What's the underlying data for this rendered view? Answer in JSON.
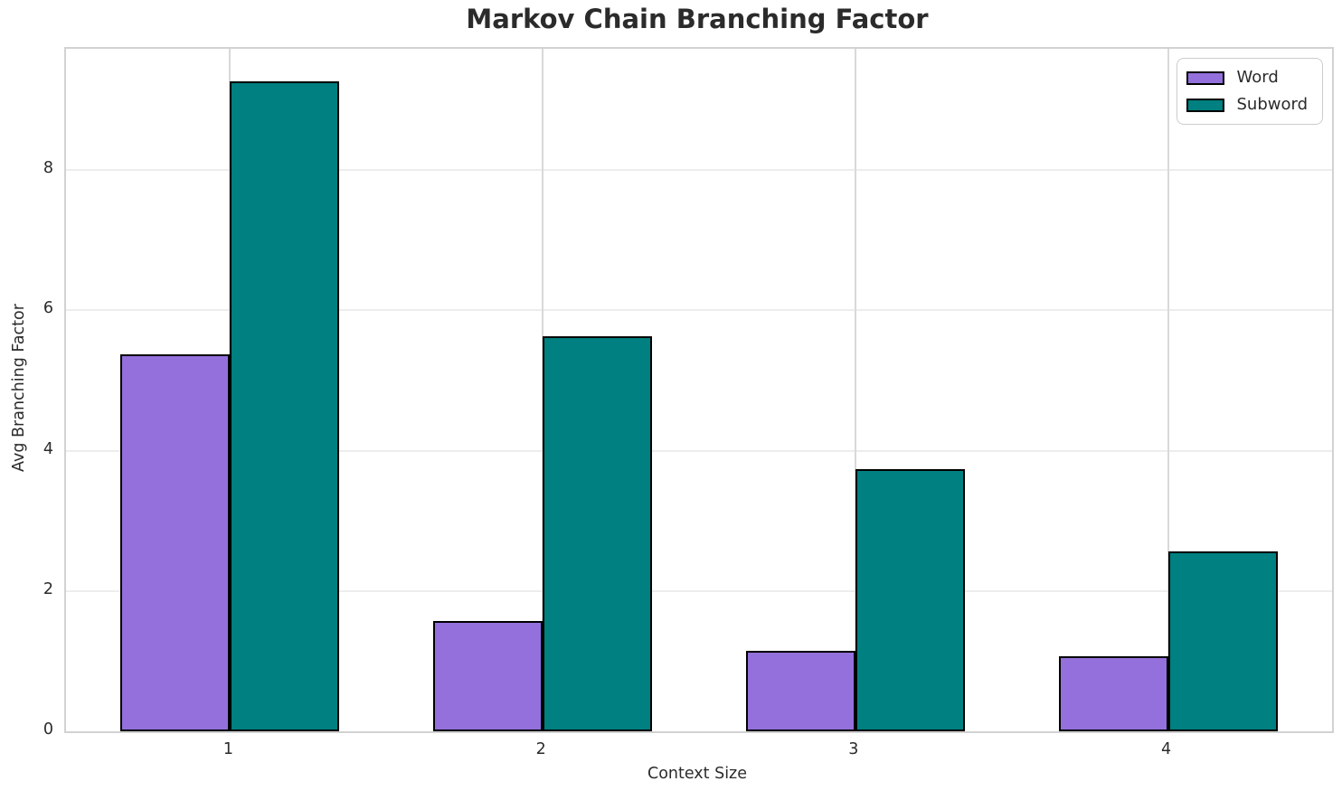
{
  "chart_data": {
    "type": "bar",
    "title": "Markov Chain Branching Factor",
    "xlabel": "Context Size",
    "ylabel": "Avg Branching Factor",
    "categories": [
      "1",
      "2",
      "3",
      "4"
    ],
    "series": [
      {
        "name": "Word",
        "color": "#9370DB",
        "values": [
          5.37,
          1.57,
          1.15,
          1.07
        ]
      },
      {
        "name": "Subword",
        "color": "#008080",
        "values": [
          9.26,
          5.63,
          3.74,
          2.56
        ]
      }
    ],
    "bar_edge_color": "#000000",
    "ylim": [
      0,
      9.73
    ],
    "yticks": [
      0,
      2,
      4,
      6,
      8
    ],
    "grid": true,
    "legend_position": "upper right",
    "style": {
      "text_color": "#2b2b2b",
      "h_grid_color": "#ededed",
      "v_grid_color": "#d9d9d9",
      "spine_color": "#d2d2d2",
      "legend_border_color": "#cccccc",
      "background": "#ffffff"
    }
  }
}
